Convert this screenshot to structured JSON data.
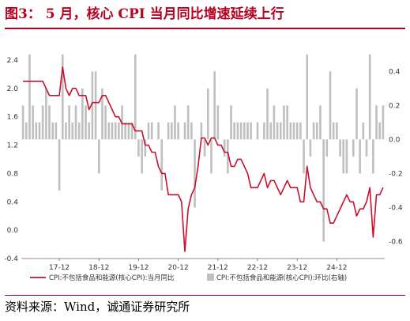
{
  "header": {
    "title": "图3：  5 月，核心 CPI 当月同比增速延续上行"
  },
  "footer": {
    "source": "资料来源：Wind，诚通证券研究所"
  },
  "colors": {
    "accent": "#b8001f",
    "line": "#c8102e",
    "bars": "#bfbfbf"
  },
  "chart_data": {
    "type": "bar+line",
    "x_tick_labels": [
      "17-12",
      "18-12",
      "19-12",
      "20-12",
      "21-12",
      "22-12",
      "23-12",
      "24-12"
    ],
    "left_axis": {
      "ylim": [
        -0.4,
        2.6
      ],
      "ticks": [
        "2.4",
        "2.0",
        "1.6",
        "1.2",
        "0.8",
        "0.4",
        "0.0",
        "-0.4"
      ]
    },
    "right_axis": {
      "ylim": [
        -0.7,
        0.55
      ],
      "ticks": [
        "0.4",
        "0.2",
        "0.0",
        "-0.2",
        "-0.4",
        "-0.6"
      ]
    },
    "start_month": "2017-01",
    "series": [
      {
        "name": "CPI:不包括食品和能源(核心CPI):当月同比",
        "type": "line",
        "axis": "left",
        "values": [
          2.1,
          2.1,
          2.1,
          2.1,
          2.1,
          2.1,
          2.1,
          2.0,
          1.9,
          1.9,
          1.9,
          1.9,
          2.3,
          2.0,
          1.9,
          2.0,
          2.0,
          1.9,
          1.9,
          1.9,
          1.7,
          1.8,
          1.8,
          1.8,
          1.9,
          1.9,
          1.8,
          1.7,
          1.6,
          1.6,
          1.5,
          1.5,
          1.5,
          1.5,
          1.4,
          1.4,
          1.4,
          1.2,
          1.2,
          1.1,
          1.1,
          0.9,
          0.8,
          0.8,
          0.5,
          0.5,
          0.5,
          0.5,
          0.4,
          -0.3,
          0.3,
          0.5,
          0.6,
          0.9,
          1.3,
          1.3,
          1.2,
          1.3,
          1.3,
          1.2,
          1.2,
          1.1,
          1.1,
          0.9,
          0.9,
          1.0,
          1.0,
          0.9,
          0.8,
          0.6,
          0.6,
          0.6,
          0.7,
          0.8,
          0.6,
          0.7,
          0.7,
          0.6,
          0.5,
          0.6,
          0.7,
          0.6,
          0.6,
          0.6,
          0.4,
          0.4,
          0.9,
          0.6,
          0.5,
          0.4,
          0.4,
          0.3,
          0.3,
          0.1,
          0.1,
          0.2,
          0.3,
          0.4,
          0.5,
          0.4,
          0.4,
          0.2,
          0.3,
          0.3,
          0.4,
          0.6,
          -0.1,
          0.5,
          0.5,
          0.6
        ]
      },
      {
        "name": "CPI:不包括食品和能源(核心CPI):环比(右轴)",
        "type": "bar",
        "axis": "right",
        "values": [
          0.2,
          0.1,
          0.5,
          0.2,
          0.1,
          0.1,
          0.2,
          0.3,
          0.2,
          0.1,
          0.1,
          -0.3,
          0.5,
          0.1,
          0.2,
          0.1,
          0.2,
          0.1,
          0.3,
          0.2,
          0.1,
          0.4,
          0.4,
          -0.2,
          0.3,
          0.2,
          0.1,
          0.1,
          0.1,
          0.1,
          0.2,
          0.1,
          0.1,
          0.1,
          0.5,
          -0.1,
          -0.2,
          -0.1,
          0.1,
          0.1,
          0.0,
          0.1,
          -0.3,
          0.0,
          0.1,
          0.1,
          0.2,
          0.1,
          0.0,
          0.1,
          0.2,
          0.1,
          -0.4,
          0.0,
          0.1,
          -0.1,
          0.3,
          -0.2,
          0.4,
          0.2,
          0.0,
          -0.1,
          -0.2,
          0.2,
          0.1,
          0.1,
          0.1,
          0.1,
          0.1,
          0.1,
          0.0,
          0.1,
          0.0,
          0.1,
          0.3,
          0.1,
          0.2,
          0.1,
          0.1,
          0.2,
          0.2,
          0.1,
          0.1,
          0.1,
          0.1,
          -0.2,
          0.5,
          -0.1,
          0.1,
          0.1,
          0.2,
          -0.6,
          -0.1,
          0.4,
          0.1,
          0.1,
          -0.1,
          -0.2,
          -0.2,
          0.0,
          -0.1,
          0.3,
          -0.2,
          0.1,
          -0.1,
          0.5,
          -0.2,
          0.2,
          0.1,
          0.2
        ]
      }
    ],
    "legend": {
      "position": "bottom",
      "items": [
        {
          "label": "CPI:不包括食品和能源(核心CPI):当月同比",
          "marker": "line"
        },
        {
          "label": "CPI:不包括食品和能源(核心CPI):环比(右轴)",
          "marker": "square"
        }
      ]
    }
  }
}
